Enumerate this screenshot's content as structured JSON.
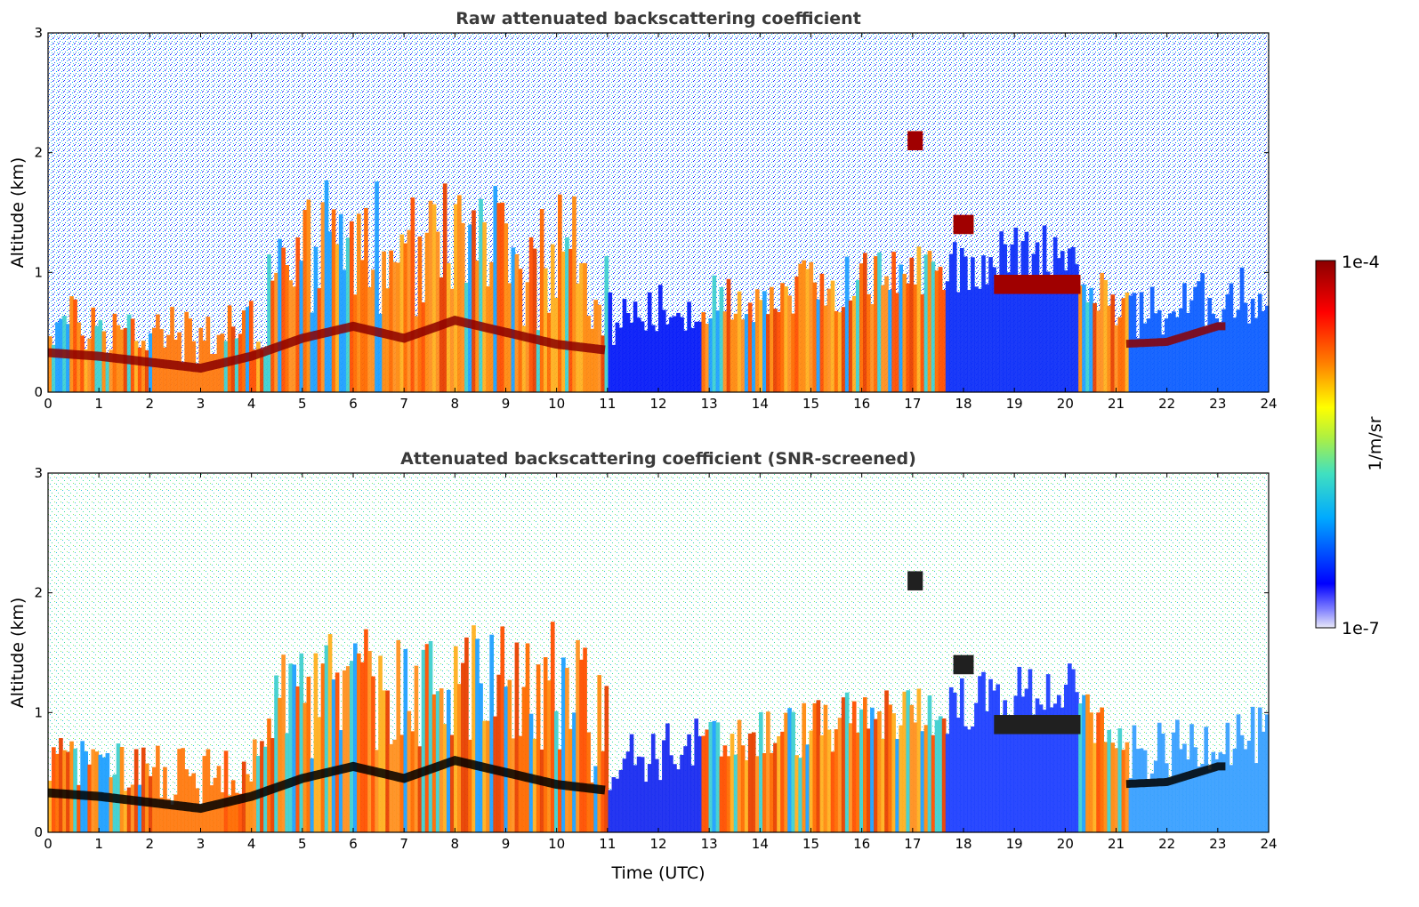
{
  "chart_data": [
    {
      "type": "heatmap",
      "title": "Raw attenuated backscattering coefficient",
      "xlabel": "",
      "ylabel": "Altitude (km)",
      "xlim": [
        0,
        24
      ],
      "ylim": [
        0,
        3
      ],
      "xticks": [
        "0",
        "1",
        "2",
        "3",
        "4",
        "5",
        "6",
        "7",
        "8",
        "9",
        "10",
        "11",
        "12",
        "13",
        "14",
        "15",
        "16",
        "17",
        "18",
        "19",
        "20",
        "21",
        "22",
        "23",
        "24"
      ],
      "yticks": [
        "0",
        "1",
        "2",
        "3"
      ],
      "features": {
        "boundary_layer_top_km": [
          {
            "t": 0,
            "h": 0.33
          },
          {
            "t": 1,
            "h": 0.3
          },
          {
            "t": 2,
            "h": 0.25
          },
          {
            "t": 3,
            "h": 0.2
          },
          {
            "t": 4,
            "h": 0.3
          },
          {
            "t": 5,
            "h": 0.45
          },
          {
            "t": 6,
            "h": 0.55
          },
          {
            "t": 7,
            "h": 0.45
          },
          {
            "t": 8,
            "h": 0.6
          },
          {
            "t": 9,
            "h": 0.5
          },
          {
            "t": 10,
            "h": 0.4
          },
          {
            "t": 11,
            "h": 0.35
          },
          {
            "t": 19,
            "h": 0.9
          },
          {
            "t": 20,
            "h": 0.95
          },
          {
            "t": 21,
            "h": 0.4
          },
          {
            "t": 22,
            "h": 0.42
          },
          {
            "t": 23,
            "h": 0.55
          }
        ],
        "cloud_layer_km": [
          {
            "t_start": 16.9,
            "t_end": 17.2,
            "h": 2.1
          },
          {
            "t_start": 17.8,
            "t_end": 18.2,
            "h": 1.4
          },
          {
            "t_start": 18.6,
            "t_end": 20.3,
            "h": 0.9
          }
        ]
      }
    },
    {
      "type": "heatmap",
      "title": "Attenuated backscattering coefficient (SNR-screened)",
      "xlabel": "Time (UTC)",
      "ylabel": "Altitude (km)",
      "xlim": [
        0,
        24
      ],
      "ylim": [
        0,
        3
      ],
      "xticks": [
        "0",
        "1",
        "2",
        "3",
        "4",
        "5",
        "6",
        "7",
        "8",
        "9",
        "10",
        "11",
        "12",
        "13",
        "14",
        "15",
        "16",
        "17",
        "18",
        "19",
        "20",
        "21",
        "22",
        "23",
        "24"
      ],
      "yticks": [
        "0",
        "1",
        "2",
        "3"
      ]
    }
  ],
  "colorbar": {
    "label": "1/m/sr",
    "max_label": "1e-4",
    "min_label": "1e-7",
    "range": [
      1e-07,
      0.0001
    ],
    "colormap": [
      "#e8e8f8",
      "#0000ff",
      "#00aaff",
      "#40e0c0",
      "#b0f040",
      "#ffff00",
      "#ff8000",
      "#ff0000",
      "#8b0000"
    ]
  }
}
